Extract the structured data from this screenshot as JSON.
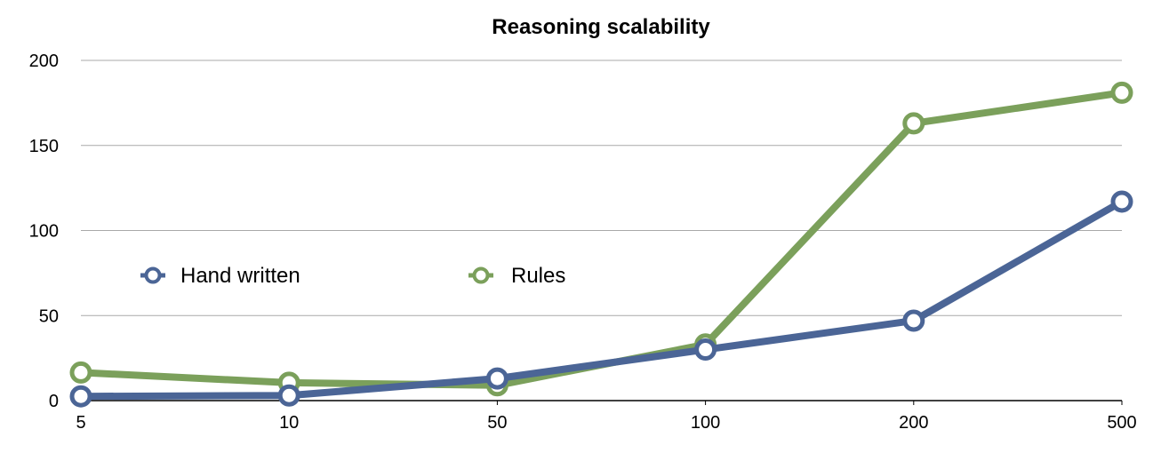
{
  "chart_data": {
    "type": "line",
    "title": "Reasoning scalability",
    "xlabel": "",
    "ylabel": "",
    "categories": [
      "5",
      "10",
      "50",
      "100",
      "200",
      "500"
    ],
    "ylim": [
      0,
      200
    ],
    "yticks": [
      "0",
      "50",
      "100",
      "150",
      "200"
    ],
    "grid": true,
    "legend_position": "inside-left",
    "series": [
      {
        "name": "Hand written",
        "color": "#4b6596",
        "values": [
          2.5,
          3,
          13,
          30,
          47,
          117
        ]
      },
      {
        "name": "Rules",
        "color": "#7ba05b",
        "values": [
          16.5,
          10.5,
          9,
          33,
          163,
          181
        ]
      }
    ]
  }
}
